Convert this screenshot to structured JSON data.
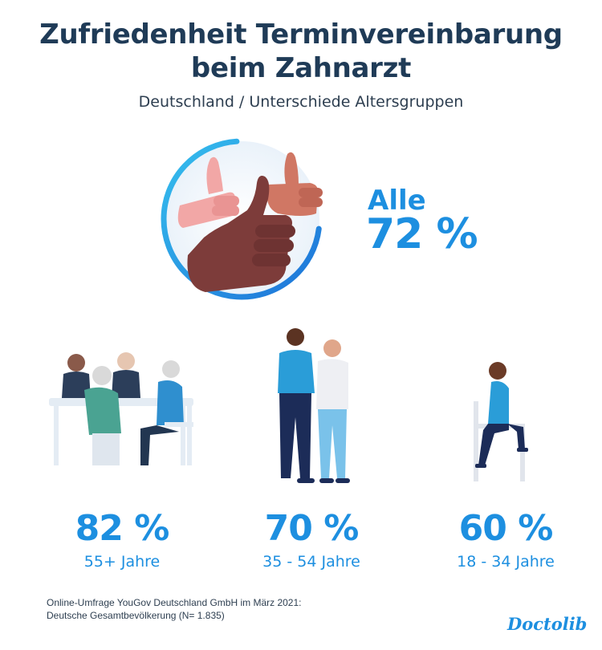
{
  "header": {
    "title_line1": "Zufriedenheit Terminvereinbarung",
    "title_line2": "beim Zahnarzt",
    "subtitle": "Deutschland / Unterschiede Altersgruppen"
  },
  "colors": {
    "accent": "#1d8fe0",
    "title": "#1f3b57",
    "ring_track": "#e8f1f9"
  },
  "overall": {
    "label": "Alle",
    "value_text": "72 %"
  },
  "chart_data": {
    "type": "pie",
    "title": "Zufriedenheit Terminvereinbarung beim Zahnarzt",
    "subtitle": "Deutschland / Unterschiede Altersgruppen",
    "overall": {
      "label": "Alle",
      "value": 72
    },
    "categories": [
      "55+ Jahre",
      "35 - 54 Jahre",
      "18 - 34 Jahre"
    ],
    "values": [
      82,
      70,
      60
    ],
    "unit": "%"
  },
  "groups": [
    {
      "value_text": "82 %",
      "label": "55+ Jahre"
    },
    {
      "value_text": "70 %",
      "label": "35 - 54 Jahre"
    },
    {
      "value_text": "60 %",
      "label": "18 - 34 Jahre"
    }
  ],
  "footer": {
    "source_line1": "Online-Umfrage YouGov Deutschland GmbH im März 2021:",
    "source_line2": "Deutsche Gesamtbevölkerung (N= 1.835)",
    "logo": "Doctolib"
  }
}
